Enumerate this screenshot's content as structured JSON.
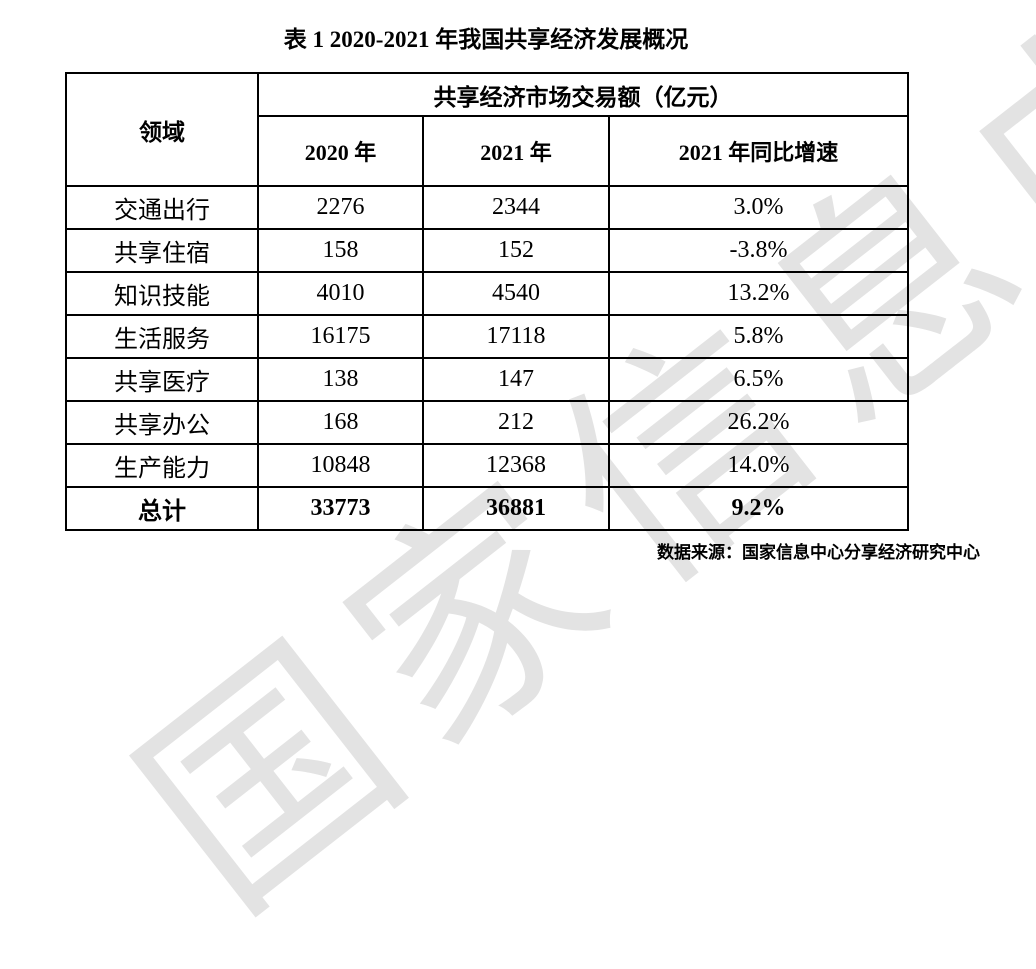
{
  "page": {
    "title": "表 1 2020-2021 年我国共享经济发展概况",
    "source_note": "数据来源：国家信息中心分享经济研究中心",
    "watermark_text": "国家信息中心"
  },
  "table": {
    "row_header": "领域",
    "col_group_header": "共享经济市场交易额（亿元）",
    "columns": [
      "2020 年",
      "2021 年",
      "2021 年同比增速"
    ],
    "rows": [
      {
        "label": "交通出行",
        "v2020": "2276",
        "v2021": "2344",
        "growth": "3.0%"
      },
      {
        "label": "共享住宿",
        "v2020": "158",
        "v2021": "152",
        "growth": "-3.8%"
      },
      {
        "label": "知识技能",
        "v2020": "4010",
        "v2021": "4540",
        "growth": "13.2%"
      },
      {
        "label": "生活服务",
        "v2020": "16175",
        "v2021": "17118",
        "growth": "5.8%"
      },
      {
        "label": "共享医疗",
        "v2020": "138",
        "v2021": "147",
        "growth": "6.5%"
      },
      {
        "label": "共享办公",
        "v2020": "168",
        "v2021": "212",
        "growth": "26.2%"
      },
      {
        "label": "生产能力",
        "v2020": "10848",
        "v2021": "12368",
        "growth": "14.0%"
      }
    ],
    "total_row": {
      "label": "总计",
      "v2020": "33773",
      "v2021": "36881",
      "growth": "9.2%"
    }
  },
  "colors": {
    "text": "#000000",
    "border": "#000000",
    "watermark": "#e3e3e3",
    "background": "#ffffff"
  }
}
